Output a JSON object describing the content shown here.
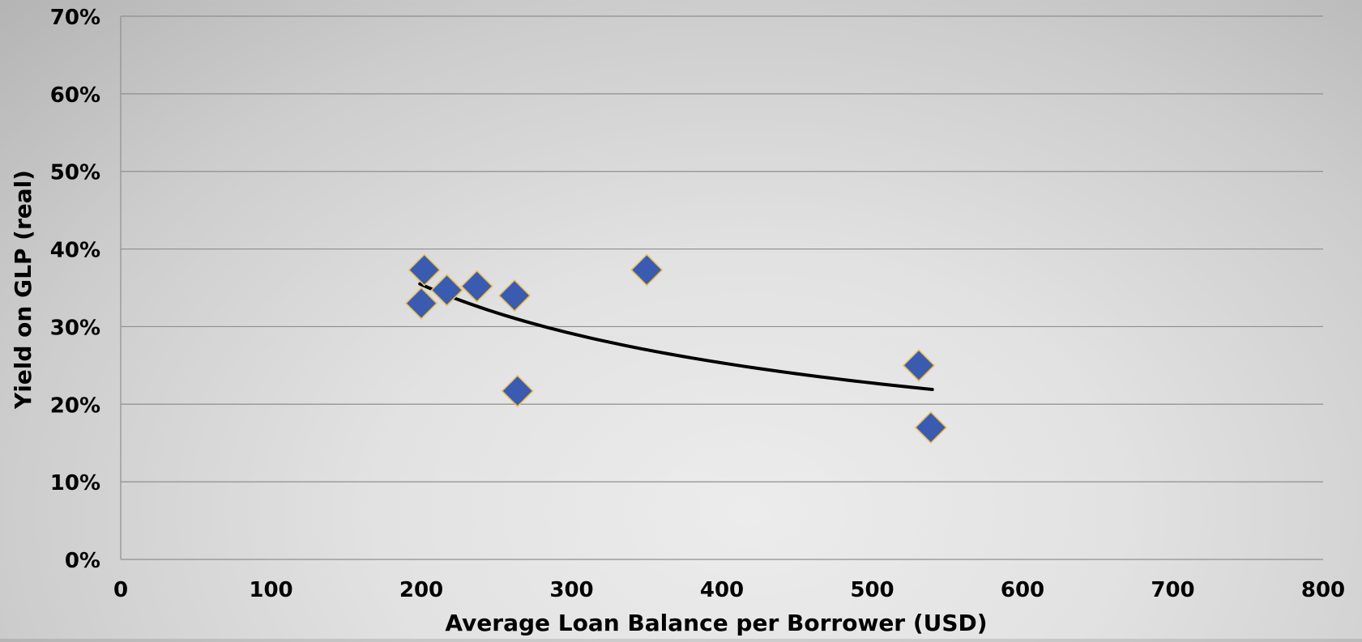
{
  "chart_data": {
    "type": "scatter",
    "title": "",
    "xlabel": "Average Loan Balance per Borrower (USD)",
    "ylabel": "Yield on GLP (real)",
    "xlim": [
      0,
      800
    ],
    "ylim": [
      0,
      0.7
    ],
    "x_ticks": [
      0,
      100,
      200,
      300,
      400,
      500,
      600,
      700,
      800
    ],
    "x_tick_labels": [
      "0",
      "100",
      "200",
      "300",
      "400",
      "500",
      "600",
      "700",
      "800"
    ],
    "y_ticks": [
      0,
      0.1,
      0.2,
      0.3,
      0.4,
      0.5,
      0.6,
      0.7
    ],
    "y_tick_labels": [
      "0%",
      "10%",
      "20%",
      "30%",
      "40%",
      "50%",
      "60%",
      "70%"
    ],
    "grid": "horizontal",
    "series": [
      {
        "marker": "diamond",
        "color": "#3A5BB0",
        "edge_color": "#E8C15A",
        "points": [
          {
            "x": 200,
            "y": 0.33
          },
          {
            "x": 202,
            "y": 0.373
          },
          {
            "x": 217,
            "y": 0.347
          },
          {
            "x": 237,
            "y": 0.352
          },
          {
            "x": 262,
            "y": 0.34
          },
          {
            "x": 264,
            "y": 0.217
          },
          {
            "x": 350,
            "y": 0.373
          },
          {
            "x": 531,
            "y": 0.25
          },
          {
            "x": 539,
            "y": 0.17
          }
        ]
      }
    ],
    "trendline": {
      "type": "power",
      "color": "#000000",
      "x_range": [
        199,
        540
      ],
      "y_at_start": 0.355,
      "y_at_end": 0.219
    }
  }
}
